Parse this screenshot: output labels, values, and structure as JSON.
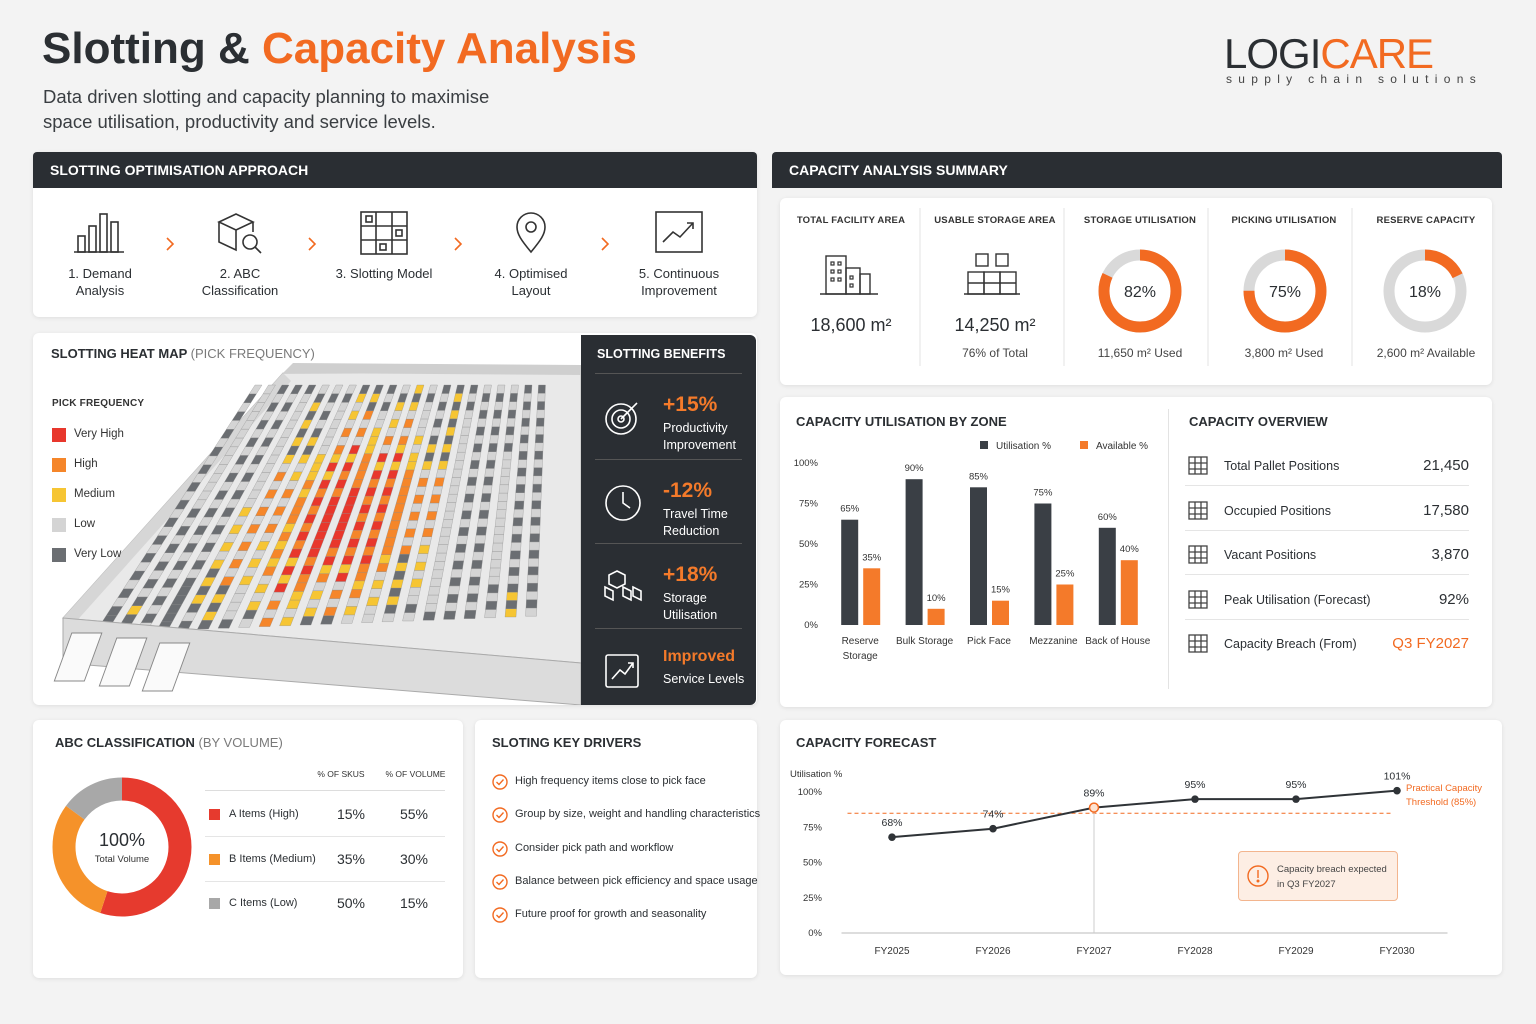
{
  "header": {
    "title_dark": "Slotting &",
    "title_accent": "Capacity Analysis",
    "subtitle": "Data driven slotting and capacity planning to maximise space utilisation, productivity and service levels.",
    "logo_dark": "LOGI",
    "logo_accent": "CARE",
    "tagline": "supply chain solutions"
  },
  "approach": {
    "title": "SLOTTING OPTIMISATION APPROACH",
    "steps": [
      "1. Demand Analysis",
      "2. ABC Classification",
      "3. Slotting Model",
      "4. Optimised Layout",
      "5. Continuous Improvement"
    ]
  },
  "heat_map": {
    "title": "SLOTTING HEAT MAP",
    "subtitle": "(PICK FREQUENCY)",
    "legend_title": "PICK FREQUENCY",
    "legend": [
      {
        "label": "Very High",
        "color": "#e8372c"
      },
      {
        "label": "High",
        "color": "#f5862a"
      },
      {
        "label": "Medium",
        "color": "#f6c533"
      },
      {
        "label": "Low",
        "color": "#d4d4d4"
      },
      {
        "label": "Very Low",
        "color": "#6b6e72"
      }
    ]
  },
  "benefits": {
    "title": "SLOTTING BENEFITS",
    "items": [
      {
        "value": "+15%",
        "label": "Productivity Improvement"
      },
      {
        "value": "-12%",
        "label": "Travel Time Reduction"
      },
      {
        "value": "+18%",
        "label": "Storage Utilisation"
      },
      {
        "value": "Improved",
        "label": "Service Levels"
      }
    ]
  },
  "summary": {
    "title": "CAPACITY ANALYSIS SUMMARY",
    "cards": [
      {
        "label": "TOTAL FACILITY AREA",
        "value": "18,600 m²"
      },
      {
        "label": "USABLE STORAGE AREA",
        "value": "14,250 m²",
        "note": "76% of Total"
      }
    ]
  },
  "overview": {
    "title": "CAPACITY OVERVIEW",
    "rows": [
      {
        "label": "Total Pallet Positions",
        "value": "21,450"
      },
      {
        "label": "Occupied Positions",
        "value": "17,580"
      },
      {
        "label": "Vacant Positions",
        "value": "3,870"
      },
      {
        "label": "Peak Utilisation (Forecast)",
        "value": "92%"
      },
      {
        "label": "Capacity Breach (From)",
        "value": "Q3 FY2027"
      }
    ]
  },
  "drivers": {
    "title": "SLOTING KEY DRIVERS",
    "items": [
      "High frequency items close to pick face",
      "Group by size, weight and handling characteristics",
      "Consider pick path and workflow",
      "Balance between pick efficiency and space usage",
      "Future proof for growth and seasonality"
    ]
  },
  "chart_data": [
    {
      "type": "gauge",
      "title": "STORAGE UTILISATION",
      "values": [
        82
      ],
      "value_labels": [
        "82%"
      ],
      "note": "11,650 m² Used",
      "ylim": [
        0,
        100
      ],
      "color": "#f26a21"
    },
    {
      "type": "gauge",
      "title": "PICKING UTILISATION",
      "values": [
        75
      ],
      "value_labels": [
        "75%"
      ],
      "note": "3,800 m² Used",
      "ylim": [
        0,
        100
      ],
      "color": "#f26a21"
    },
    {
      "type": "gauge",
      "title": "RESERVE CAPACITY",
      "values": [
        18
      ],
      "value_labels": [
        "18%"
      ],
      "note": "2,600 m² Available",
      "ylim": [
        0,
        100
      ],
      "color": "#f26a21"
    },
    {
      "type": "bar",
      "title": "CAPACITY UTILISATION BY ZONE",
      "categories": [
        "Reserve Storage",
        "Bulk Storage",
        "Pick Face",
        "Mezzanine",
        "Back of House"
      ],
      "series": [
        {
          "name": "Utilisation %",
          "color": "#3a3f45",
          "values": [
            65,
            90,
            85,
            75,
            60
          ],
          "value_labels": [
            "65%",
            "90%",
            "85%",
            "75%",
            "60%"
          ]
        },
        {
          "name": "Available %",
          "color": "#f47a2a",
          "values": [
            35,
            10,
            15,
            25,
            40
          ],
          "value_labels": [
            "35%",
            "10%",
            "15%",
            "25%",
            "40%"
          ]
        }
      ],
      "ylim": [
        0,
        100
      ],
      "yticks": [
        {
          "value": 0,
          "label": "0%"
        },
        {
          "value": 25,
          "label": "25%"
        },
        {
          "value": 50,
          "label": "50%"
        },
        {
          "value": 75,
          "label": "75%"
        },
        {
          "value": 100,
          "label": "100%"
        }
      ],
      "grid": false
    },
    {
      "type": "pie",
      "title": "ABC CLASSIFICATION",
      "subtitle": "(BY VOLUME)",
      "center_value": "100%",
      "center_label": "Total Volume",
      "sku_header": "% OF SKUS",
      "volume_header": "% OF VOLUME",
      "categories": [
        "A Items (High)",
        "B Items (Medium)",
        "C Items (Low)"
      ],
      "colors": [
        "#e63a2e",
        "#f5922a",
        "#a8a8a8"
      ],
      "values": [
        55,
        30,
        15
      ],
      "value_labels": [
        "55%",
        "30%",
        "15%"
      ],
      "sku_labels": [
        "15%",
        "35%",
        "50%"
      ]
    },
    {
      "type": "line",
      "title": "CAPACITY FORECAST",
      "ylabel": "Utilisation %",
      "categories": [
        "FY2025",
        "FY2026",
        "FY2027",
        "FY2028",
        "FY2029",
        "FY2030"
      ],
      "values": [
        68,
        74,
        89,
        95,
        95,
        101
      ],
      "value_labels": [
        "68%",
        "74%",
        "89%",
        "95%",
        "95%",
        "101%"
      ],
      "color": "#2f3337",
      "ylim": [
        0,
        110
      ],
      "yticks": [
        {
          "value": 0,
          "label": "0%"
        },
        {
          "value": 25,
          "label": "25%"
        },
        {
          "value": 50,
          "label": "50%"
        },
        {
          "value": 75,
          "label": "75%"
        },
        {
          "value": 100,
          "label": "100%"
        }
      ],
      "threshold": 85,
      "threshold_label": "Practical Capacity Threshold (85%)",
      "threshold_color": "#f26a21",
      "annotation": "Capacity breach expected in Q3 FY2027"
    }
  ]
}
